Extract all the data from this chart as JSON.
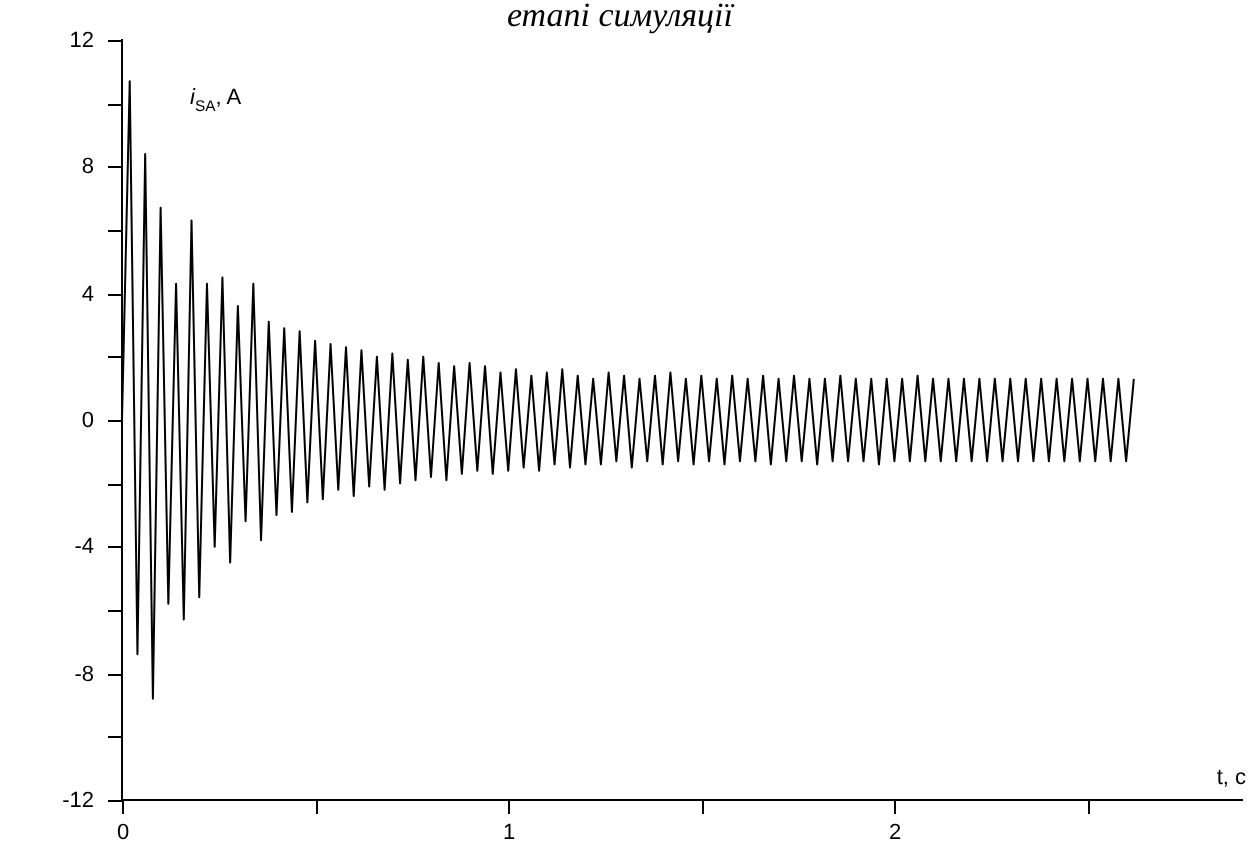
{
  "chart_data": {
    "type": "line",
    "title": "етапі симуляції",
    "xlabel": "t, с",
    "ylabel": "i$_{SA}$, A",
    "x": [
      0,
      0.02,
      0.04,
      0.06,
      0.08,
      0.1,
      0.12,
      0.14,
      0.16,
      0.18,
      0.2,
      0.22,
      0.24,
      0.26,
      0.28,
      0.3,
      0.32,
      0.34,
      0.36,
      0.38,
      0.4,
      0.42,
      0.44,
      0.46,
      0.48,
      0.5,
      0.52,
      0.54,
      0.56,
      0.58,
      0.6,
      0.62,
      0.64,
      0.66,
      0.68,
      0.7,
      0.72,
      0.74,
      0.76,
      0.78,
      0.8,
      0.82,
      0.84,
      0.86,
      0.88,
      0.9,
      0.92,
      0.94,
      0.96,
      0.98,
      1,
      1.02,
      1.04,
      1.06,
      1.08,
      1.1,
      1.12,
      1.14,
      1.16,
      1.18,
      1.2,
      1.22,
      1.24,
      1.26,
      1.28,
      1.3,
      1.32,
      1.34,
      1.36,
      1.38,
      1.4,
      1.42,
      1.44,
      1.46,
      1.48,
      1.5,
      1.52,
      1.54,
      1.56,
      1.58,
      1.6,
      1.62,
      1.64,
      1.66,
      1.68,
      1.7,
      1.72,
      1.74,
      1.76,
      1.78,
      1.8,
      1.82,
      1.84,
      1.86,
      1.88,
      1.9,
      1.92,
      1.94,
      1.96,
      1.98,
      2,
      2.02,
      2.04,
      2.06,
      2.08,
      2.1,
      2.12,
      2.14,
      2.16,
      2.18,
      2.2,
      2.22,
      2.24,
      2.26,
      2.28,
      2.3,
      2.32,
      2.34,
      2.36,
      2.38,
      2.4,
      2.42,
      2.44,
      2.46,
      2.48,
      2.5,
      2.52,
      2.54,
      2.56,
      2.58,
      2.6,
      2.62
    ],
    "series": [
      {
        "color": "#000000",
        "values": [
          0,
          10.7,
          -7.4,
          8.4,
          -8.8,
          6.7,
          -5.8,
          4.3,
          -6.3,
          6.3,
          -5.6,
          4.3,
          -4.0,
          4.5,
          -4.5,
          3.6,
          -3.2,
          4.3,
          -3.8,
          3.1,
          -3.0,
          2.9,
          -2.9,
          2.8,
          -2.6,
          2.5,
          -2.5,
          2.4,
          -2.2,
          2.3,
          -2.4,
          2.2,
          -2.1,
          2.0,
          -2.2,
          2.1,
          -2.0,
          1.9,
          -1.9,
          2.0,
          -1.8,
          1.8,
          -1.9,
          1.7,
          -1.7,
          1.8,
          -1.6,
          1.7,
          -1.7,
          1.5,
          -1.6,
          1.6,
          -1.5,
          1.4,
          -1.6,
          1.5,
          -1.4,
          1.6,
          -1.5,
          1.4,
          -1.4,
          1.3,
          -1.4,
          1.5,
          -1.3,
          1.4,
          -1.5,
          1.3,
          -1.3,
          1.4,
          -1.4,
          1.5,
          -1.3,
          1.3,
          -1.4,
          1.4,
          -1.3,
          1.3,
          -1.4,
          1.4,
          -1.3,
          1.3,
          -1.3,
          1.4,
          -1.4,
          1.3,
          -1.3,
          1.4,
          -1.3,
          1.3,
          -1.4,
          1.3,
          -1.3,
          1.4,
          -1.3,
          1.3,
          -1.3,
          1.3,
          -1.4,
          1.3,
          -1.3,
          1.3,
          -1.3,
          1.4,
          -1.3,
          1.3,
          -1.3,
          1.3,
          -1.3,
          1.3,
          -1.3,
          1.3,
          -1.3,
          1.3,
          -1.3,
          1.3,
          -1.3,
          1.3,
          -1.3,
          1.3,
          -1.3,
          1.3,
          -1.3,
          1.3,
          -1.3,
          1.3,
          -1.3,
          1.3,
          -1.3,
          1.3,
          -1.3,
          1.3
        ]
      }
    ],
    "xlim": [
      0,
      2.9
    ],
    "xticks": [
      0,
      {
        "value": 0.5,
        "label": null
      },
      1,
      {
        "value": 1.5,
        "label": null
      },
      2,
      {
        "value": 2.5,
        "label": null
      }
    ],
    "ylim": [
      -12,
      12
    ],
    "yticks": [
      -12,
      {
        "value": -10,
        "label": null
      },
      -8,
      {
        "value": -6,
        "label": null
      },
      -4,
      {
        "value": -2,
        "label": null
      },
      0,
      {
        "value": 2,
        "label": null
      },
      4,
      {
        "value": 6,
        "label": null
      },
      8,
      {
        "value": 10,
        "label": null
      },
      12
    ],
    "grid": false,
    "legend": false,
    "marker": "none",
    "line_style": "solid"
  }
}
